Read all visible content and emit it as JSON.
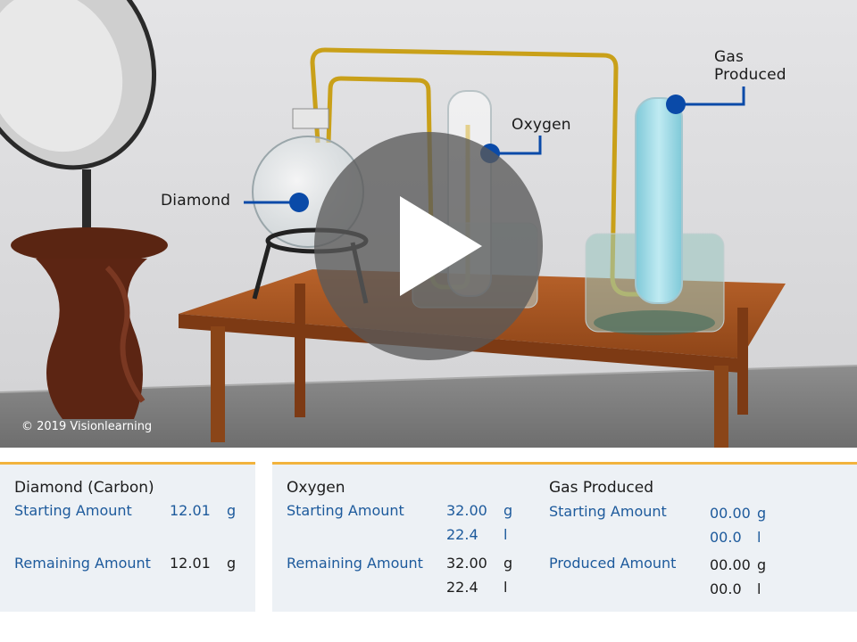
{
  "scene": {
    "callouts": {
      "diamond": "Diamond",
      "oxygen": "Oxygen",
      "gas_line1": "Gas",
      "gas_line2": "Produced"
    },
    "copyright": "© 2019 Visionlearning",
    "colors": {
      "callout_dot": "#0a4aa8",
      "accent_border": "#f2b33d",
      "label_blue": "#1d5a9c"
    }
  },
  "play_icon": "play-icon",
  "panels": {
    "diamond": {
      "title": "Diamond (Carbon)",
      "starting_label": "Starting Amount",
      "starting_value": "12.01",
      "starting_unit": "g",
      "remaining_label": "Remaining Amount",
      "remaining_value": "12.01",
      "remaining_unit": "g"
    },
    "oxygen": {
      "title": "Oxygen",
      "starting_label": "Starting Amount",
      "starting_mass": "32.00",
      "starting_mass_unit": "g",
      "starting_volume": "22.4",
      "starting_volume_unit": "l",
      "remaining_label": "Remaining Amount",
      "remaining_mass": "32.00",
      "remaining_mass_unit": "g",
      "remaining_volume": "22.4",
      "remaining_volume_unit": "l"
    },
    "gas": {
      "title": "Gas Produced",
      "starting_label": "Starting Amount",
      "starting_mass": "00.00",
      "starting_mass_unit": "g",
      "starting_volume": "00.0",
      "starting_volume_unit": "l",
      "produced_label": "Produced Amount",
      "produced_mass": "00.00",
      "produced_mass_unit": "g",
      "produced_volume": "00.0",
      "produced_volume_unit": "l"
    }
  }
}
